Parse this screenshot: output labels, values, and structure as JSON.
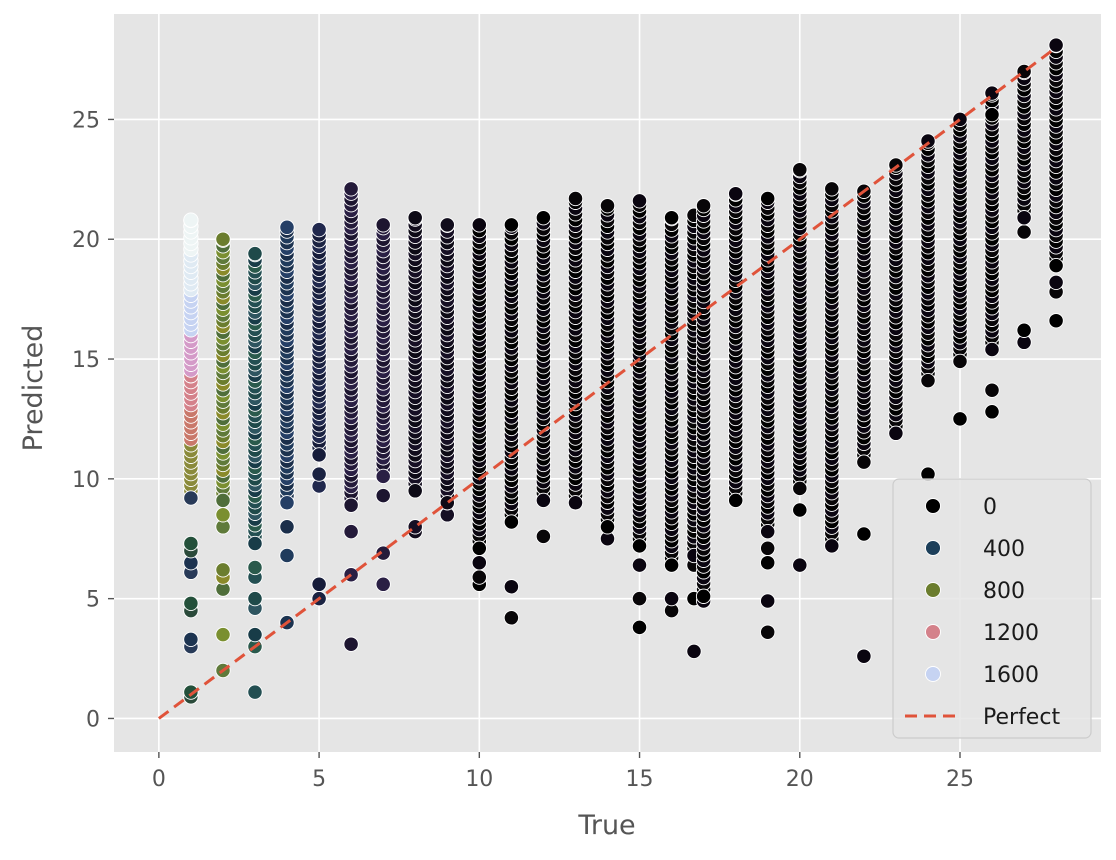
{
  "chart_data": {
    "type": "scatter",
    "style": "ggplot",
    "xlabel": "True",
    "ylabel": "Predicted",
    "xlim": [
      -1.4,
      29.4
    ],
    "ylim": [
      -1.4,
      29.4
    ],
    "xticks": [
      0,
      5,
      10,
      15,
      20,
      25
    ],
    "yticks": [
      0,
      5,
      10,
      15,
      20,
      25
    ],
    "grid": true,
    "hue_legend": {
      "entries": [
        {
          "label": "0",
          "color": "#000000"
        },
        {
          "label": "400",
          "color": "#1c3f5a"
        },
        {
          "label": "800",
          "color": "#6b7d2e"
        },
        {
          "label": "1200",
          "color": "#d4818a"
        },
        {
          "label": "1600",
          "color": "#c6d3f2"
        }
      ],
      "placement": "lower-right"
    },
    "reference_line": {
      "label": "Perfect",
      "color": "#e0533a",
      "style": "dashed",
      "from": [
        0,
        0
      ],
      "to": [
        28,
        28
      ]
    },
    "columns": [
      {
        "x": 1,
        "ymin": 0.9,
        "ymax": 20.8,
        "hue": "mixed-bright",
        "outliers": [
          0.9,
          1.1,
          3.0,
          3.3,
          4.5,
          4.8,
          6.1,
          6.5,
          7.0,
          7.3,
          9.2
        ]
      },
      {
        "x": 2,
        "ymin": 2.0,
        "ymax": 20.0,
        "hue": "olive-green",
        "outliers": [
          2.0,
          3.5,
          5.4,
          5.9,
          6.2,
          8.0,
          8.5,
          9.1
        ]
      },
      {
        "x": 3,
        "ymin": 1.1,
        "ymax": 19.4,
        "hue": "dark-teal",
        "outliers": [
          1.1,
          3.0,
          3.5,
          4.6,
          5.0,
          5.9,
          6.3,
          7.3
        ]
      },
      {
        "x": 4,
        "ymin": 4.0,
        "ymax": 20.5,
        "hue": "navy",
        "outliers": [
          4.0,
          6.8,
          8.0,
          9.0
        ]
      },
      {
        "x": 5,
        "ymin": 5.0,
        "ymax": 20.4,
        "hue": "dark-navy",
        "outliers": [
          5.0,
          5.6,
          9.7,
          10.2,
          11.0
        ]
      },
      {
        "x": 6,
        "ymin": 3.1,
        "ymax": 22.1,
        "hue": "dark-purple",
        "outliers": [
          3.1,
          6.0,
          7.8,
          8.9
        ]
      },
      {
        "x": 7,
        "ymin": 5.6,
        "ymax": 20.6,
        "hue": "dark-purple",
        "outliers": [
          5.6,
          6.9,
          9.3,
          10.1
        ]
      },
      {
        "x": 8,
        "ymin": 7.8,
        "ymax": 20.9,
        "hue": "near-black",
        "outliers": [
          7.8,
          8.0,
          9.5
        ]
      },
      {
        "x": 9,
        "ymin": 8.5,
        "ymax": 20.6,
        "hue": "near-black",
        "outliers": [
          8.5,
          9.0
        ]
      },
      {
        "x": 10,
        "ymin": 5.6,
        "ymax": 20.6,
        "hue": "black",
        "outliers": [
          5.6,
          5.9,
          6.5,
          7.1
        ]
      },
      {
        "x": 11,
        "ymin": 4.2,
        "ymax": 20.6,
        "hue": "black",
        "outliers": [
          4.2,
          5.5,
          8.2
        ]
      },
      {
        "x": 12,
        "ymin": 7.6,
        "ymax": 20.9,
        "hue": "black",
        "outliers": [
          7.6,
          9.1
        ]
      },
      {
        "x": 13,
        "ymin": 9.0,
        "ymax": 21.7,
        "hue": "black",
        "outliers": [
          9.0
        ]
      },
      {
        "x": 14,
        "ymin": 7.5,
        "ymax": 21.4,
        "hue": "black",
        "outliers": [
          7.5,
          8.0
        ]
      },
      {
        "x": 15,
        "ymin": 3.8,
        "ymax": 21.6,
        "hue": "black",
        "outliers": [
          3.8,
          5.0,
          6.4,
          7.2
        ]
      },
      {
        "x": 16,
        "ymin": 4.5,
        "ymax": 20.9,
        "hue": "black",
        "outliers": [
          4.5,
          5.0,
          6.4
        ]
      },
      {
        "x": 16.7,
        "ymin": 2.8,
        "ymax": 21.0,
        "hue": "black",
        "outliers": [
          2.8,
          5.0,
          6.4,
          6.8
        ]
      },
      {
        "x": 17,
        "ymin": 4.9,
        "ymax": 21.4,
        "hue": "black",
        "outliers": [
          4.9,
          5.1
        ]
      },
      {
        "x": 18,
        "ymin": 9.1,
        "ymax": 21.9,
        "hue": "black",
        "outliers": [
          9.1
        ]
      },
      {
        "x": 19,
        "ymin": 3.6,
        "ymax": 21.7,
        "hue": "black",
        "outliers": [
          3.6,
          4.9,
          6.5,
          7.1,
          7.8
        ]
      },
      {
        "x": 20,
        "ymin": 6.4,
        "ymax": 22.9,
        "hue": "black",
        "outliers": [
          6.4,
          8.7,
          9.6
        ]
      },
      {
        "x": 21,
        "ymin": 7.2,
        "ymax": 22.1,
        "hue": "black",
        "outliers": [
          7.2
        ]
      },
      {
        "x": 22,
        "ymin": 2.6,
        "ymax": 22.0,
        "hue": "black",
        "outliers": [
          2.6,
          7.7,
          10.7
        ]
      },
      {
        "x": 23,
        "ymin": 11.9,
        "ymax": 23.1,
        "hue": "black",
        "outliers": [
          11.9
        ]
      },
      {
        "x": 24,
        "ymin": 10.2,
        "ymax": 24.1,
        "hue": "black",
        "outliers": [
          10.2,
          14.1
        ]
      },
      {
        "x": 25,
        "ymin": 12.5,
        "ymax": 25.0,
        "hue": "black",
        "outliers": [
          12.5,
          14.9
        ]
      },
      {
        "x": 26,
        "ymin": 12.8,
        "ymax": 26.1,
        "hue": "black",
        "outliers": [
          12.8,
          13.7,
          15.4,
          25.2
        ]
      },
      {
        "x": 27,
        "ymin": 15.7,
        "ymax": 27.0,
        "hue": "black",
        "outliers": [
          15.7,
          16.2,
          20.3,
          20.9
        ]
      },
      {
        "x": 28,
        "ymin": 16.6,
        "ymax": 28.1,
        "hue": "black",
        "outliers": [
          16.6,
          17.8,
          18.2,
          18.9
        ]
      }
    ]
  }
}
